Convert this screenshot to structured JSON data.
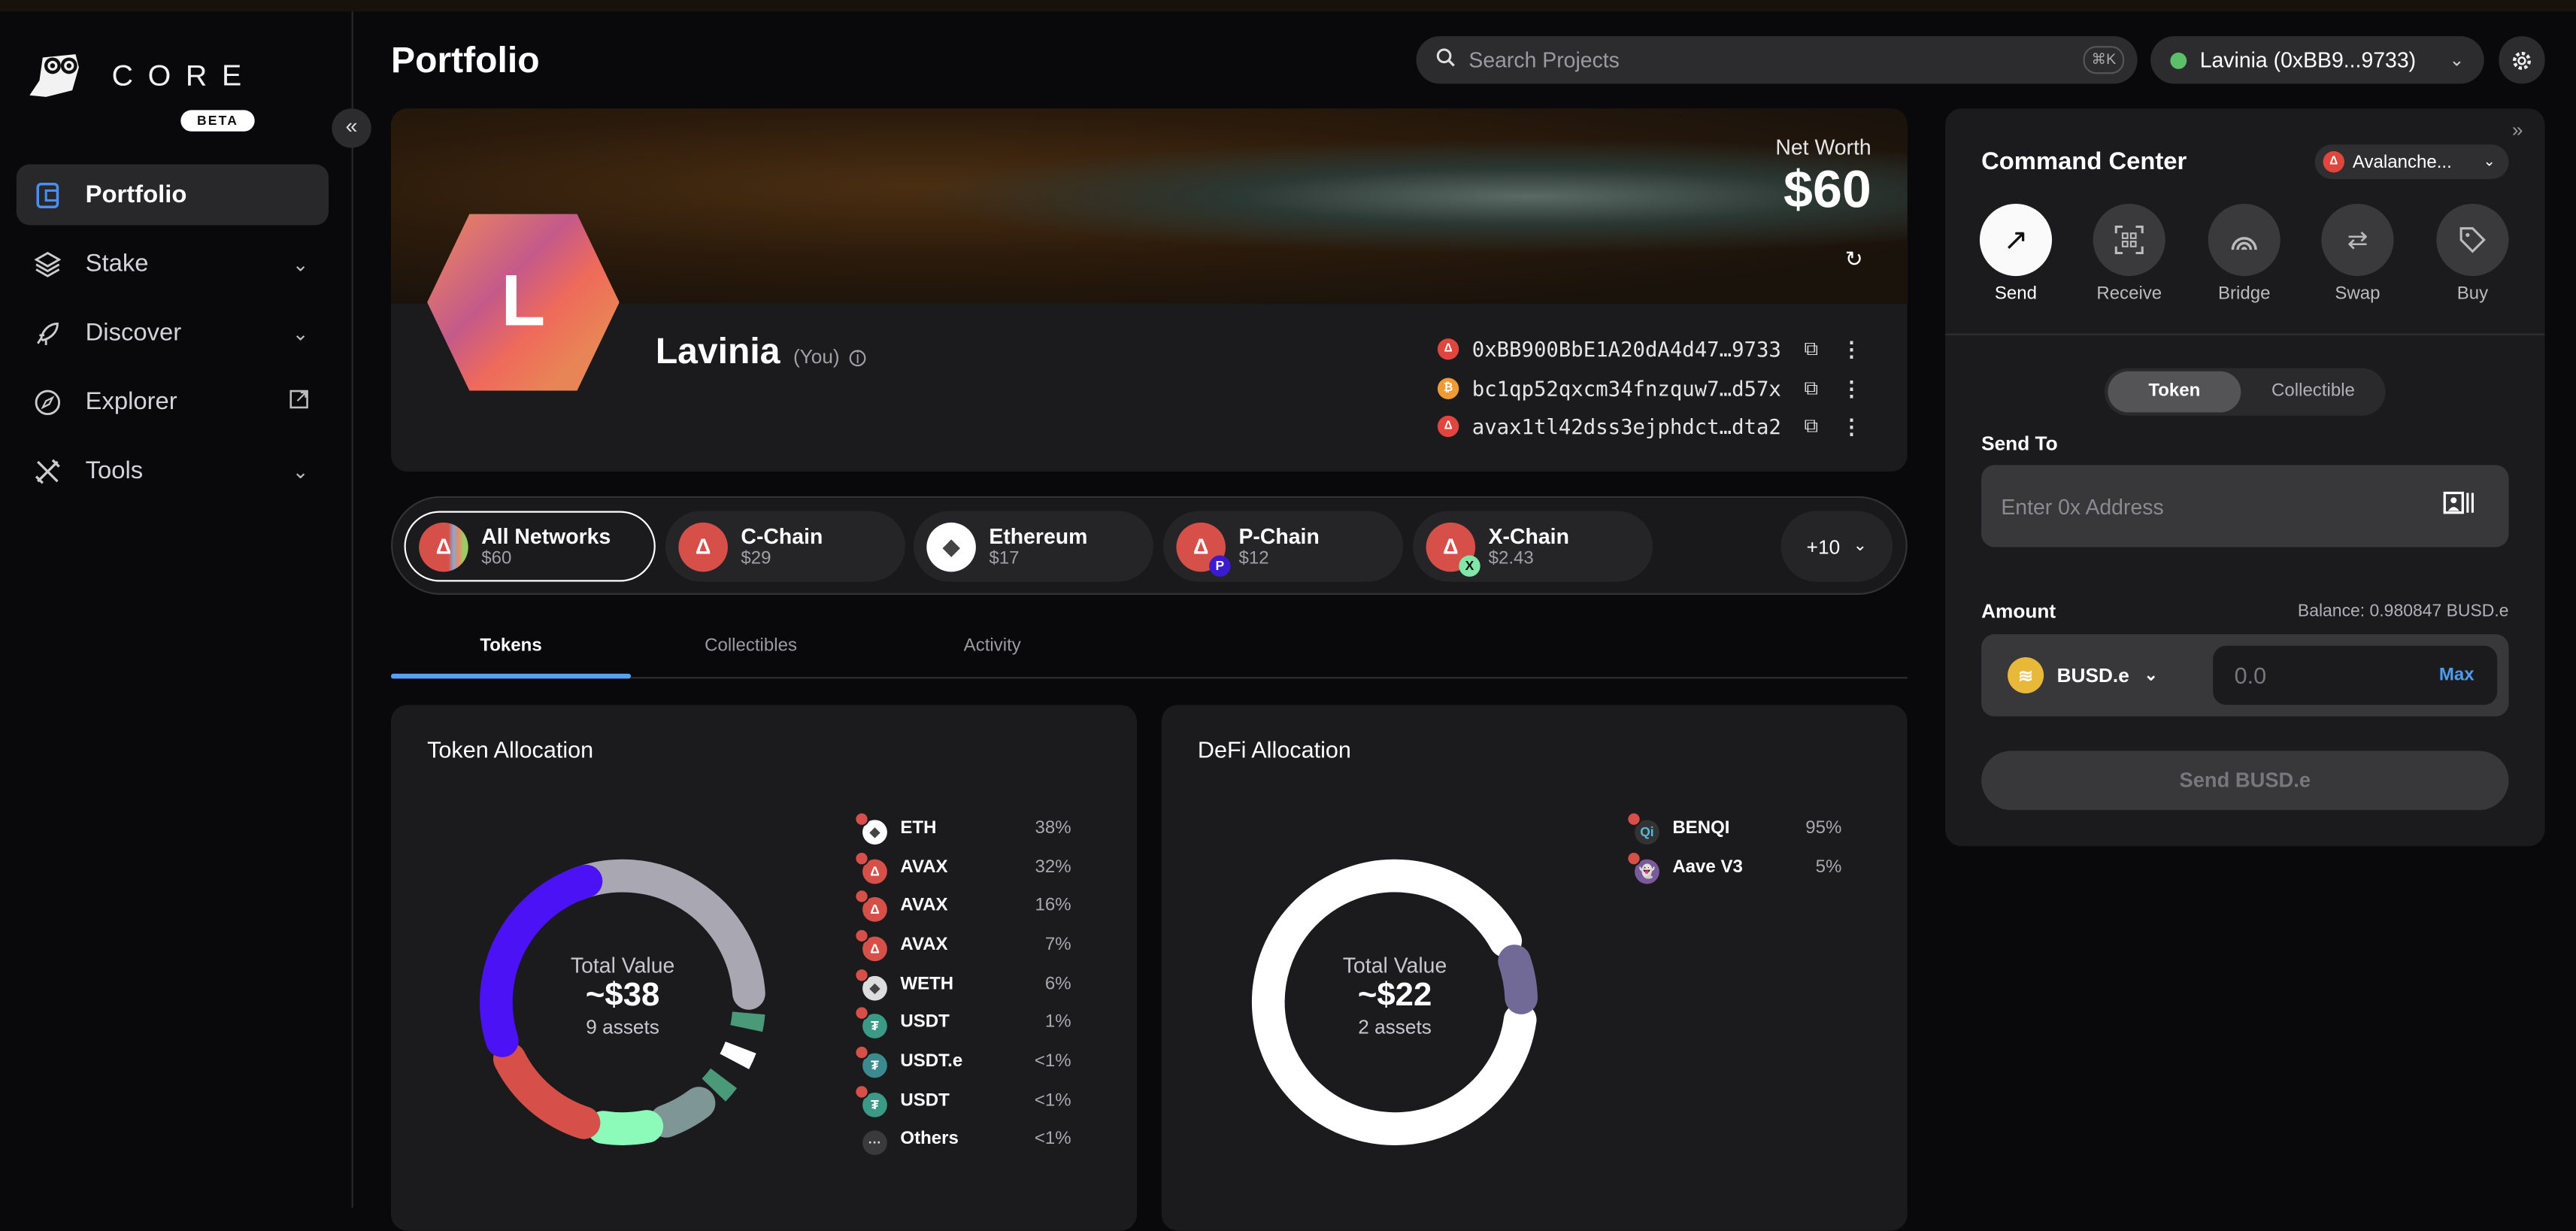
{
  "app": {
    "brand": "CORE",
    "badge": "BETA",
    "page_title": "Portfolio"
  },
  "sidebar": {
    "items": [
      {
        "label": "Portfolio",
        "icon": "wallet-icon",
        "active": true
      },
      {
        "label": "Stake",
        "icon": "layers-icon"
      },
      {
        "label": "Discover",
        "icon": "rocket-icon"
      },
      {
        "label": "Explorer",
        "icon": "compass-icon"
      },
      {
        "label": "Tools",
        "icon": "tools-icon"
      }
    ]
  },
  "header": {
    "search_placeholder": "Search Projects",
    "shortcut": "⌘K",
    "account": "Lavinia (0xBB9...9733)",
    "account_status_color": "#5cbf6a"
  },
  "profile": {
    "initial": "L",
    "name": "Lavinia",
    "you": "(You)",
    "net_worth_label": "Net Worth",
    "net_worth": "$60",
    "addresses": [
      {
        "value": "0xBB900BbE1A20dA4d47…9733",
        "chain": "avalanche",
        "color": "#e0463e"
      },
      {
        "value": "bc1qp52qxcm34fnzquw7…d57x",
        "chain": "bitcoin",
        "color": "#f09a36"
      },
      {
        "value": "avax1tl42dss3ejphdct…dta2",
        "chain": "avalanche-x",
        "color": "#e0463e"
      }
    ]
  },
  "networks": {
    "chips": [
      {
        "name": "All Networks",
        "value": "$60",
        "selected": true
      },
      {
        "name": "C-Chain",
        "value": "$29"
      },
      {
        "name": "Ethereum",
        "value": "$17"
      },
      {
        "name": "P-Chain",
        "value": "$12",
        "badge": "P"
      },
      {
        "name": "X-Chain",
        "value": "$2.43",
        "badge": "X"
      }
    ],
    "more": "+10"
  },
  "tabs": [
    {
      "label": "Tokens",
      "selected": true
    },
    {
      "label": "Collectibles"
    },
    {
      "label": "Activity"
    }
  ],
  "chart_data": [
    {
      "type": "pie",
      "title": "Token Allocation",
      "center_label": "Total Value",
      "center_value": "~$38",
      "center_sub": "9 assets",
      "legend": [
        {
          "label": "ETH",
          "pct": "38%",
          "value": 38,
          "color": "#a9a7b2"
        },
        {
          "label": "AVAX",
          "pct": "32%",
          "value": 32,
          "color": "#4b12f5"
        },
        {
          "label": "AVAX",
          "pct": "16%",
          "value": 16,
          "color": "#d64f49"
        },
        {
          "label": "AVAX",
          "pct": "7%",
          "value": 7,
          "color": "#8cfbb9"
        },
        {
          "label": "WETH",
          "pct": "6%",
          "value": 6,
          "color": "#7f9696"
        },
        {
          "label": "USDT",
          "pct": "1%",
          "value": 1,
          "color": "#4a9a7a"
        },
        {
          "label": "USDT.e",
          "pct": "<1%",
          "value": 0.6,
          "color": "#ffffff"
        },
        {
          "label": "USDT",
          "pct": "<1%",
          "value": 0.6,
          "color": "#4a9a7a"
        },
        {
          "label": "Others",
          "pct": "<1%",
          "value": 0.2,
          "color": "#3a3a3d"
        }
      ]
    },
    {
      "type": "pie",
      "title": "DeFi Allocation",
      "center_label": "Total Value",
      "center_value": "~$22",
      "center_sub": "2 assets",
      "legend": [
        {
          "label": "BENQI",
          "pct": "95%",
          "value": 95,
          "color": "#ffffff"
        },
        {
          "label": "Aave V3",
          "pct": "5%",
          "value": 5,
          "color": "#716a96"
        }
      ]
    }
  ],
  "command_center": {
    "title": "Command Center",
    "network": "Avalanche...",
    "actions": [
      {
        "label": "Send",
        "icon": "arrow-up-right-icon"
      },
      {
        "label": "Receive",
        "icon": "qr-code-icon"
      },
      {
        "label": "Bridge",
        "icon": "bridge-icon"
      },
      {
        "label": "Swap",
        "icon": "swap-icon"
      },
      {
        "label": "Buy",
        "icon": "tag-icon"
      }
    ],
    "toggle": [
      "Token",
      "Collectible"
    ],
    "send_to_label": "Send To",
    "address_placeholder": "Enter 0x Address",
    "amount_label": "Amount",
    "balance": "Balance: 0.980847 BUSD.e",
    "token": "BUSD.e",
    "amount_placeholder": "0.0",
    "max": "Max",
    "send_button": "Send BUSD.e"
  }
}
